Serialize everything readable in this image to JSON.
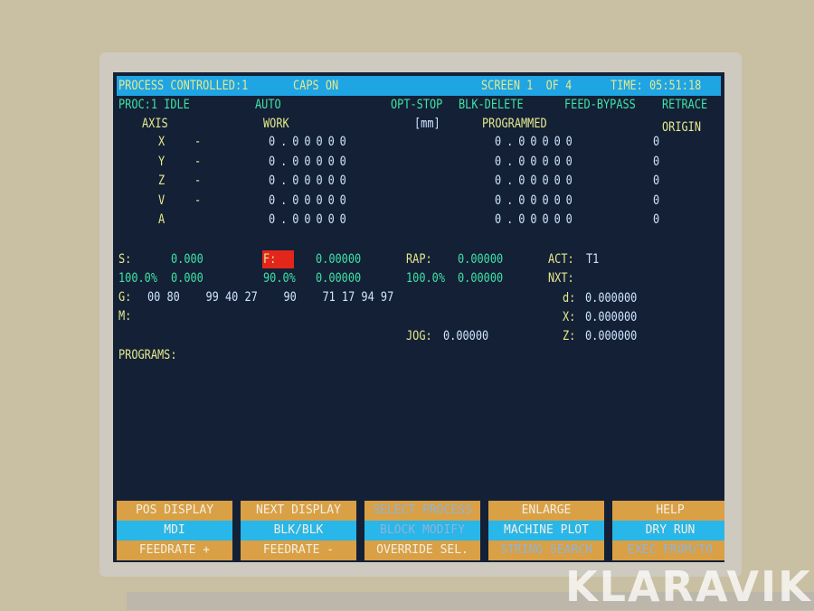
{
  "header": {
    "process": "PROCESS CONTROLLED:1",
    "caps": "CAPS ON",
    "screen": "SCREEN 1  OF 4",
    "time": "TIME: 05:51:18"
  },
  "status": {
    "proc": "PROC:1 IDLE",
    "mode": "AUTO",
    "opt_stop": "OPT-STOP",
    "blk_delete": "BLK-DELETE",
    "feed_bypass": "FEED-BYPASS",
    "retrace": "RETRACE"
  },
  "columns": {
    "axis": "AXIS",
    "work": "WORK",
    "unit": "[mm]",
    "programmed": "PROGRAMMED",
    "origin": "ORIGIN"
  },
  "axes": [
    {
      "name": "X",
      "dash": "-",
      "work": "0.00000",
      "programmed": "0.00000",
      "origin": "0"
    },
    {
      "name": "Y",
      "dash": "-",
      "work": "0.00000",
      "programmed": "0.00000",
      "origin": "0"
    },
    {
      "name": "Z",
      "dash": "-",
      "work": "0.00000",
      "programmed": "0.00000",
      "origin": "0"
    },
    {
      "name": "V",
      "dash": "-",
      "work": "0.00000",
      "programmed": "0.00000",
      "origin": "0"
    },
    {
      "name": "A",
      "dash": "",
      "work": "0.00000",
      "programmed": "0.00000",
      "origin": "0"
    }
  ],
  "spindle": {
    "label": "S:",
    "value": "0.000",
    "pct": "100.0%",
    "pct_value": "0.000"
  },
  "feed": {
    "label": "F:",
    "value": "0.00000",
    "pct": "90.0%",
    "pct_value": "0.00000"
  },
  "rapid": {
    "label": "RAP:",
    "value": "0.00000",
    "pct": "100.0%",
    "pct_value": "0.00000"
  },
  "tool": {
    "act_label": "ACT:",
    "act": "T1",
    "nxt_label": "NXT:",
    "d_label": "d:",
    "d": "0.000000",
    "x_label": "X:",
    "x": "0.000000",
    "z_label": "Z:",
    "z": "0.000000"
  },
  "gcodes": {
    "label": "G:",
    "values": "00 80    99 40 27    90    71 17 94 97"
  },
  "mcodes": {
    "label": "M:"
  },
  "jog": {
    "label": "JOG:",
    "value": "0.00000"
  },
  "programs": {
    "label": "PROGRAMS:"
  },
  "softkeys": [
    [
      "POS DISPLAY",
      "MDI",
      "FEEDRATE +"
    ],
    [
      "NEXT DISPLAY",
      "BLK/BLK",
      "FEEDRATE -"
    ],
    [
      "SELECT PROCESS",
      "BLOCK MODIFY",
      "OVERRIDE SEL."
    ],
    [
      "ENLARGE",
      "MACHINE PLOT",
      "STRING SEARCH"
    ],
    [
      "HELP",
      "DRY RUN",
      "EXEC FROM/TO"
    ]
  ],
  "watermark": "KLARAVIK",
  "colors": {
    "screen_bg": "#142036",
    "title_bar": "#1fa4e4",
    "softkey_orange": "#d9a046",
    "softkey_cyan": "#29b6e8",
    "feed_highlight": "#e3261c"
  }
}
